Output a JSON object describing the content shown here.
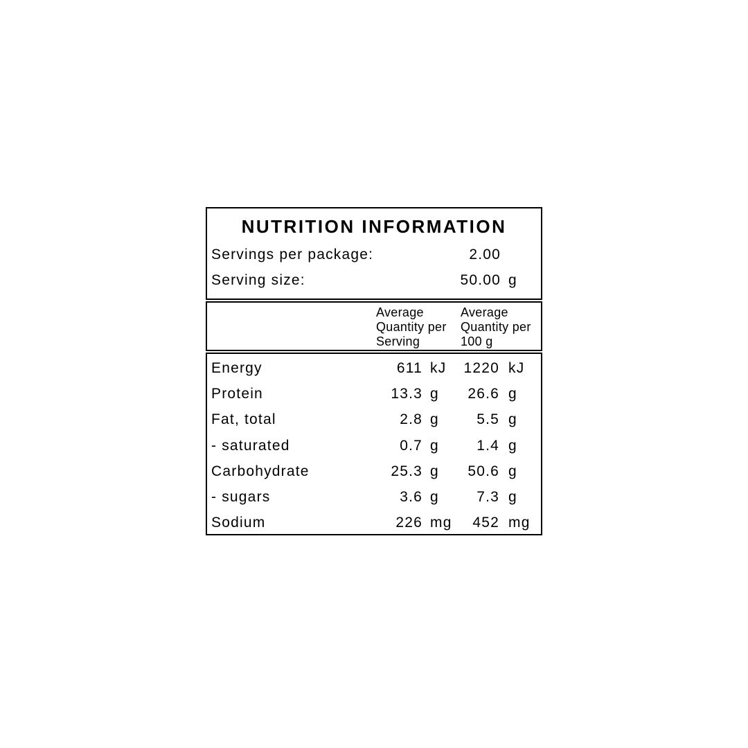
{
  "panel": {
    "title": "NUTRITION INFORMATION",
    "serving_info": {
      "servings_per_package_label": "Servings per package:",
      "servings_per_package_value": "2.00",
      "serving_size_label": "Serving size:",
      "serving_size_value": "50.00",
      "serving_size_unit": "g"
    },
    "columns": {
      "per_serving_header": "Average\nQuantity per\nServing",
      "per_100g_header": "Average\nQuantity per\n100 g"
    },
    "rows": [
      {
        "label": "Energy",
        "per_serving": "611",
        "per_serving_unit": "kJ",
        "per_100g": "1220",
        "per_100g_unit": "kJ"
      },
      {
        "label": "Protein",
        "per_serving": "13.3",
        "per_serving_unit": "g",
        "per_100g": "26.6",
        "per_100g_unit": "g"
      },
      {
        "label": "Fat, total",
        "per_serving": "2.8",
        "per_serving_unit": "g",
        "per_100g": "5.5",
        "per_100g_unit": "g"
      },
      {
        "label": "- saturated",
        "per_serving": "0.7",
        "per_serving_unit": "g",
        "per_100g": "1.4",
        "per_100g_unit": "g"
      },
      {
        "label": "Carbohydrate",
        "per_serving": "25.3",
        "per_serving_unit": "g",
        "per_100g": "50.6",
        "per_100g_unit": "g"
      },
      {
        "label": "- sugars",
        "per_serving": "3.6",
        "per_serving_unit": "g",
        "per_100g": "7.3",
        "per_100g_unit": "g"
      },
      {
        "label": "Sodium",
        "per_serving": "226",
        "per_serving_unit": "mg",
        "per_100g": "452",
        "per_100g_unit": "mg"
      }
    ],
    "colors": {
      "border": "#000000",
      "text": "#000000",
      "background": "#ffffff"
    }
  }
}
